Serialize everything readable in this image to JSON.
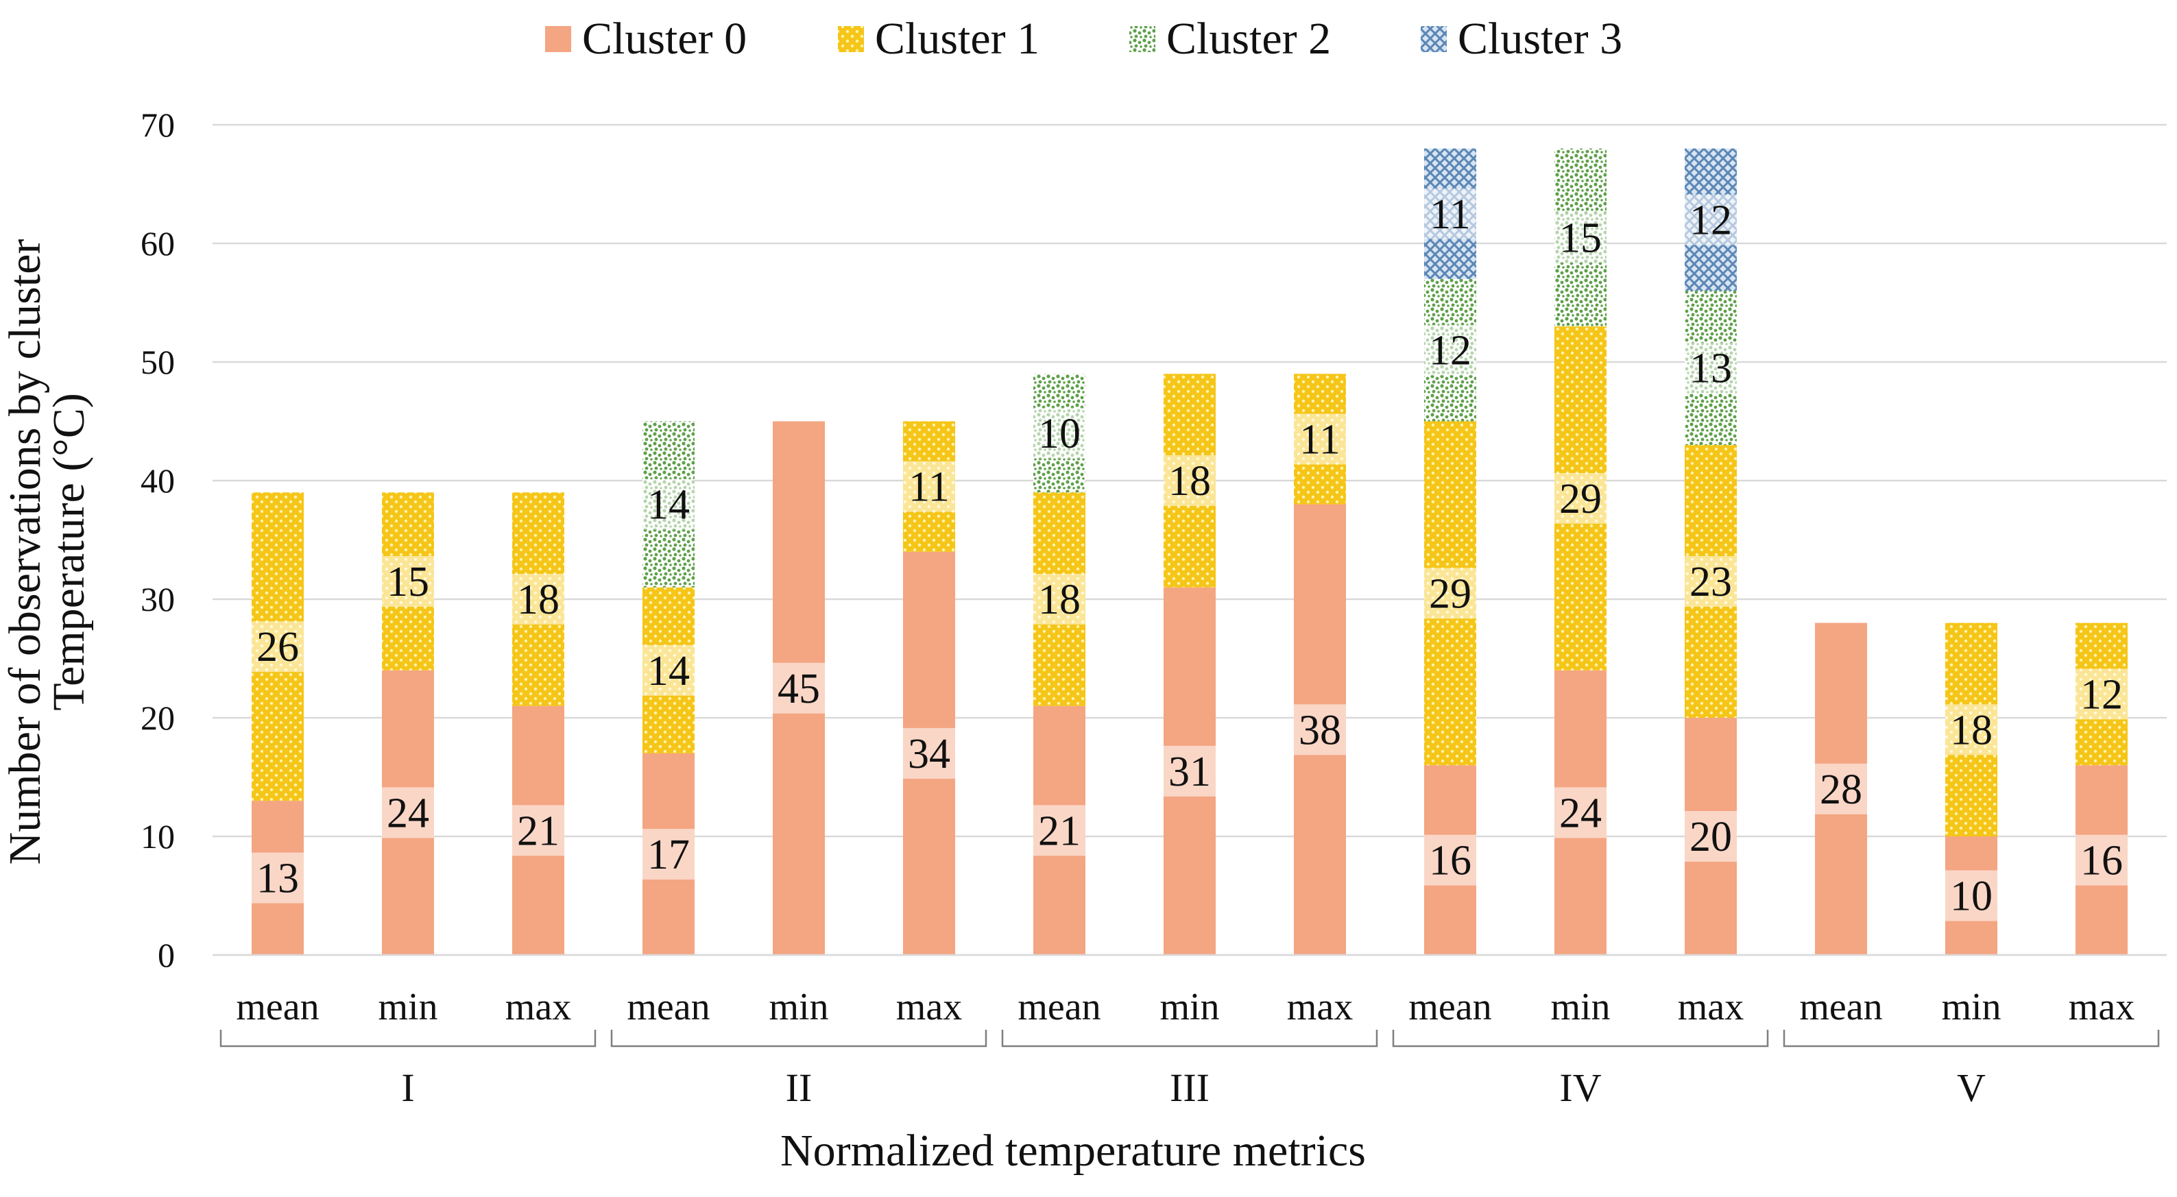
{
  "chart_data": {
    "type": "bar",
    "stacked": true,
    "title": "",
    "xlabel": "Normalized temperature metrics",
    "ylabel": [
      "Number of observations by cluster",
      "Temperature (°C)"
    ],
    "ylim": [
      0,
      70
    ],
    "yticks": [
      0,
      10,
      20,
      30,
      40,
      50,
      60,
      70
    ],
    "grid": true,
    "legend_position": "top",
    "groups": [
      "I",
      "II",
      "III",
      "IV",
      "V"
    ],
    "metrics": [
      "mean",
      "min",
      "max"
    ],
    "categories": [
      "I mean",
      "I min",
      "I max",
      "II mean",
      "II min",
      "II max",
      "III mean",
      "III min",
      "III max",
      "IV mean",
      "IV min",
      "IV max",
      "V mean",
      "V min",
      "V max"
    ],
    "series": [
      {
        "name": "Cluster 0",
        "color": "#F4A582",
        "pattern": "solid",
        "values": [
          13,
          24,
          21,
          17,
          45,
          34,
          21,
          31,
          38,
          16,
          24,
          20,
          28,
          10,
          16
        ]
      },
      {
        "name": "Cluster 1",
        "color": "#F5C518",
        "pattern": "dots",
        "values": [
          26,
          15,
          18,
          14,
          0,
          11,
          18,
          18,
          11,
          29,
          29,
          23,
          0,
          18,
          12
        ]
      },
      {
        "name": "Cluster 2",
        "color": "#5EA04A",
        "pattern": "speckle",
        "values": [
          0,
          0,
          0,
          14,
          0,
          0,
          10,
          0,
          0,
          12,
          15,
          13,
          0,
          0,
          0
        ]
      },
      {
        "name": "Cluster 3",
        "color": "#5B86B5",
        "pattern": "crosshatch",
        "values": [
          0,
          0,
          0,
          0,
          0,
          0,
          0,
          0,
          0,
          11,
          0,
          12,
          0,
          0,
          0
        ]
      }
    ]
  }
}
